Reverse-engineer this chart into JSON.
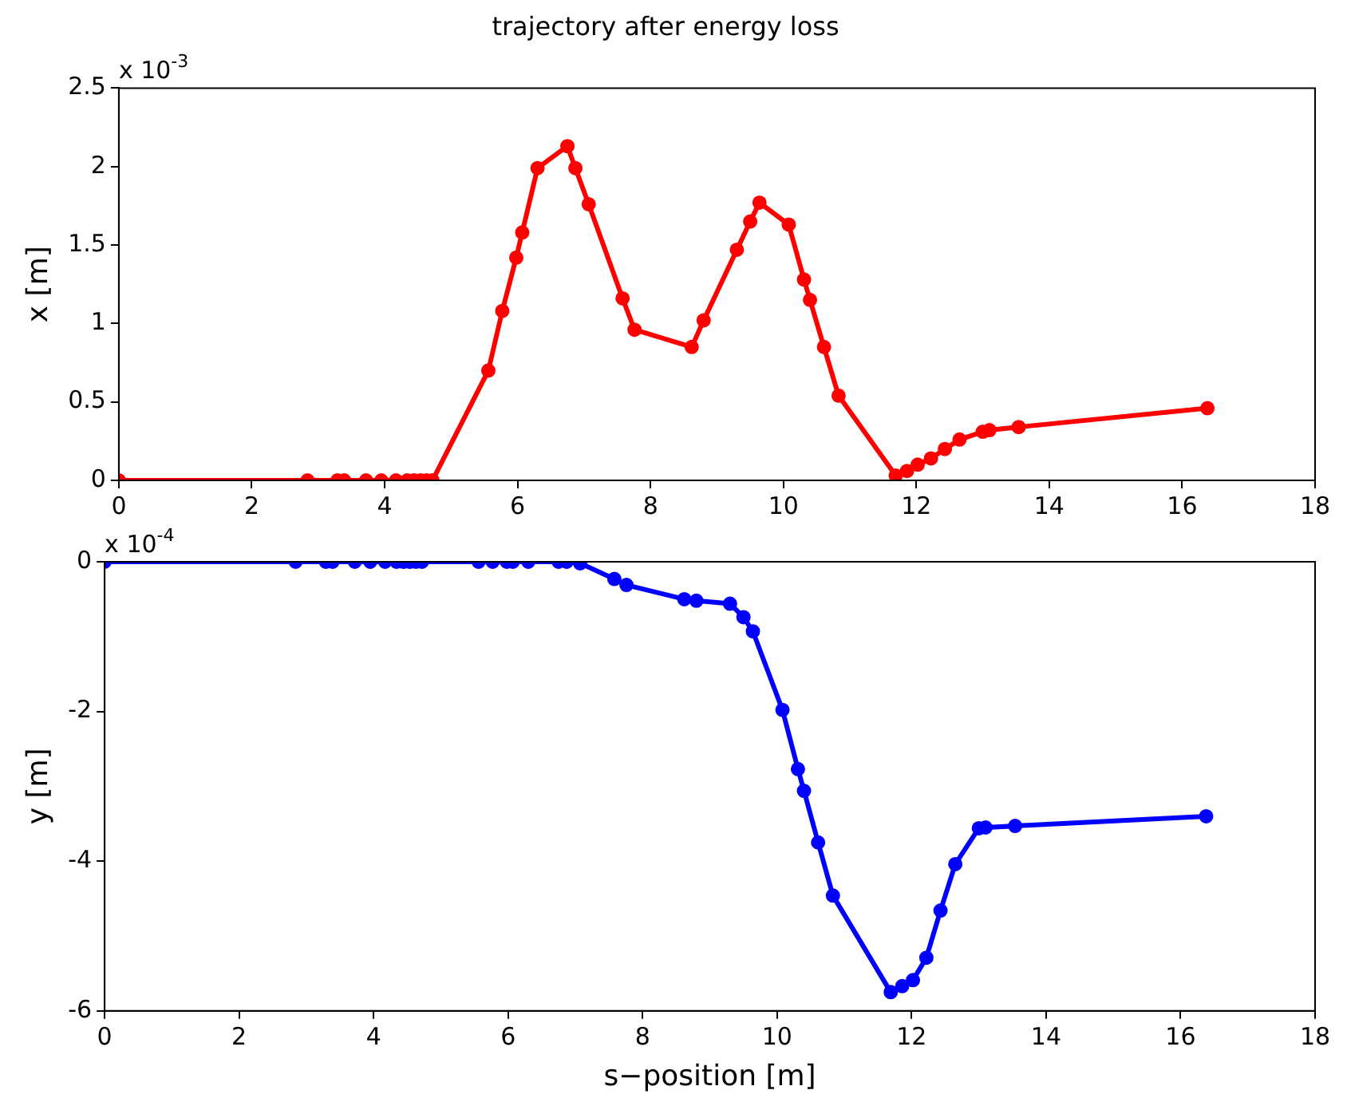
{
  "chart_data": [
    {
      "type": "line",
      "title": "trajectory after energy loss",
      "ylabel": "x [m]",
      "annotations": [
        "x 10$^{-3}$"
      ],
      "x": [
        0,
        2.84,
        3.29,
        3.39,
        3.72,
        3.95,
        4.17,
        4.34,
        4.44,
        4.54,
        4.63,
        4.72,
        5.56,
        5.77,
        5.98,
        6.07,
        6.3,
        6.75,
        6.87,
        7.07,
        7.58,
        7.76,
        8.62,
        8.8,
        9.3,
        9.5,
        9.64,
        10.08,
        10.31,
        10.4,
        10.61,
        10.83,
        11.69,
        11.86,
        12.02,
        12.22,
        12.43,
        12.65,
        13.0,
        13.1,
        13.54,
        16.38
      ],
      "series": [
        {
          "color": "#ff0000",
          "values": [
            0,
            0,
            0,
            0,
            0,
            0,
            0,
            0,
            0,
            0,
            0,
            0,
            0.7,
            1.08,
            1.42,
            1.58,
            1.99,
            2.13,
            1.99,
            1.76,
            1.16,
            0.96,
            0.85,
            1.02,
            1.47,
            1.65,
            1.77,
            1.63,
            1.28,
            1.15,
            0.85,
            0.54,
            0.03,
            0.06,
            0.1,
            0.14,
            0.2,
            0.26,
            0.31,
            0.32,
            0.34,
            0.46
          ]
        }
      ],
      "xlim": [
        0,
        18
      ],
      "xticks": [
        0,
        2,
        4,
        6,
        8,
        10,
        12,
        14,
        16,
        18
      ],
      "ylim": [
        0,
        2.5
      ],
      "yticks": [
        0,
        0.5,
        1,
        1.5,
        2,
        2.5
      ],
      "grid": false,
      "legend": false,
      "marker": "circle",
      "line_style": "solid"
    },
    {
      "type": "line",
      "xlabel": "s−position [m]",
      "ylabel": "y [m]",
      "annotations": [
        "x 10$^{-4}$"
      ],
      "x": [
        0,
        2.84,
        3.29,
        3.39,
        3.72,
        3.95,
        4.17,
        4.34,
        4.44,
        4.54,
        4.63,
        4.72,
        5.56,
        5.77,
        5.98,
        6.07,
        6.3,
        6.75,
        6.87,
        7.07,
        7.58,
        7.76,
        8.62,
        8.8,
        9.3,
        9.5,
        9.64,
        10.08,
        10.31,
        10.4,
        10.61,
        10.83,
        11.69,
        11.86,
        12.02,
        12.22,
        12.43,
        12.65,
        13.0,
        13.1,
        13.54,
        16.38
      ],
      "series": [
        {
          "color": "#0000ff",
          "values": [
            0,
            0,
            0,
            0,
            0,
            0,
            0,
            0,
            0,
            0,
            0,
            0,
            0,
            0,
            0,
            0,
            0,
            0,
            0,
            -0.02,
            -0.23,
            -0.31,
            -0.5,
            -0.52,
            -0.56,
            -0.74,
            -0.93,
            -1.98,
            -2.77,
            -3.06,
            -3.75,
            -4.46,
            -5.75,
            -5.67,
            -5.59,
            -5.29,
            -4.66,
            -4.04,
            -3.56,
            -3.55,
            -3.53,
            -3.4
          ]
        }
      ],
      "xlim": [
        0,
        18
      ],
      "xticks": [
        0,
        2,
        4,
        6,
        8,
        10,
        12,
        14,
        16,
        18
      ],
      "ylim": [
        -6,
        0
      ],
      "yticks": [
        -6,
        -4,
        -2,
        0
      ],
      "grid": false,
      "legend": false,
      "marker": "circle",
      "line_style": "solid"
    }
  ]
}
